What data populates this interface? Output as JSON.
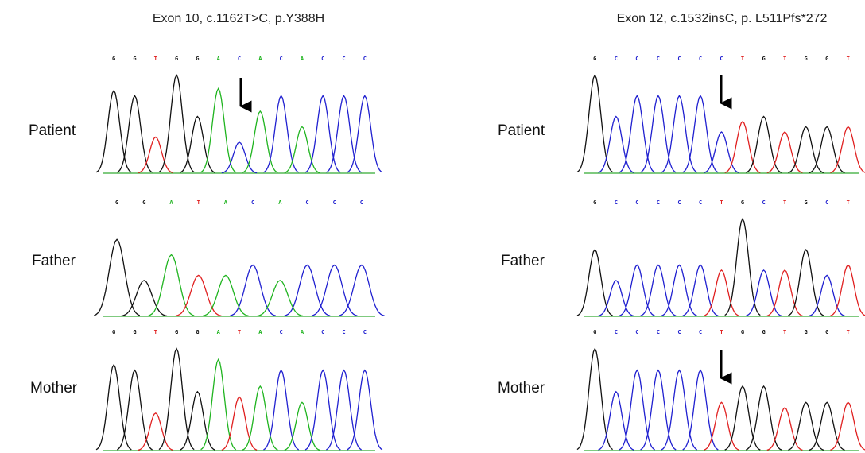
{
  "panels": [
    {
      "title": "Exon 10, c.1162T>C, p.Y388H",
      "rows": [
        {
          "label": "Patient",
          "bases": [
            "G",
            "G",
            "T",
            "G",
            "G",
            "A",
            "C",
            "A",
            "C",
            "A",
            "C",
            "C",
            "C"
          ]
        },
        {
          "label": "Father",
          "bases": [
            "G",
            "G",
            "A",
            "T",
            "A",
            "C",
            "A",
            "C",
            "C",
            "C"
          ]
        },
        {
          "label": "Mother",
          "bases": [
            "G",
            "G",
            "T",
            "G",
            "G",
            "A",
            "T",
            "A",
            "C",
            "A",
            "C",
            "C",
            "C"
          ]
        }
      ]
    },
    {
      "title": "Exon 12, c.1532insC, p. L511Pfs*272",
      "rows": [
        {
          "label": "Patient",
          "bases": [
            "G",
            "C",
            "C",
            "C",
            "C",
            "C",
            "C",
            "T",
            "G",
            "T",
            "G",
            "G",
            "T"
          ]
        },
        {
          "label": "Father",
          "bases": [
            "G",
            "C",
            "C",
            "C",
            "C",
            "C",
            "T",
            "G",
            "C",
            "T",
            "G",
            "C",
            "T"
          ]
        },
        {
          "label": "Mother",
          "bases": [
            "G",
            "C",
            "C",
            "C",
            "C",
            "C",
            "T",
            "G",
            "G",
            "T",
            "G",
            "G",
            "T"
          ]
        }
      ]
    }
  ],
  "base_colors": {
    "G": "#111111",
    "A": "#1fb41f",
    "T": "#e02020",
    "C": "#2020d0"
  }
}
